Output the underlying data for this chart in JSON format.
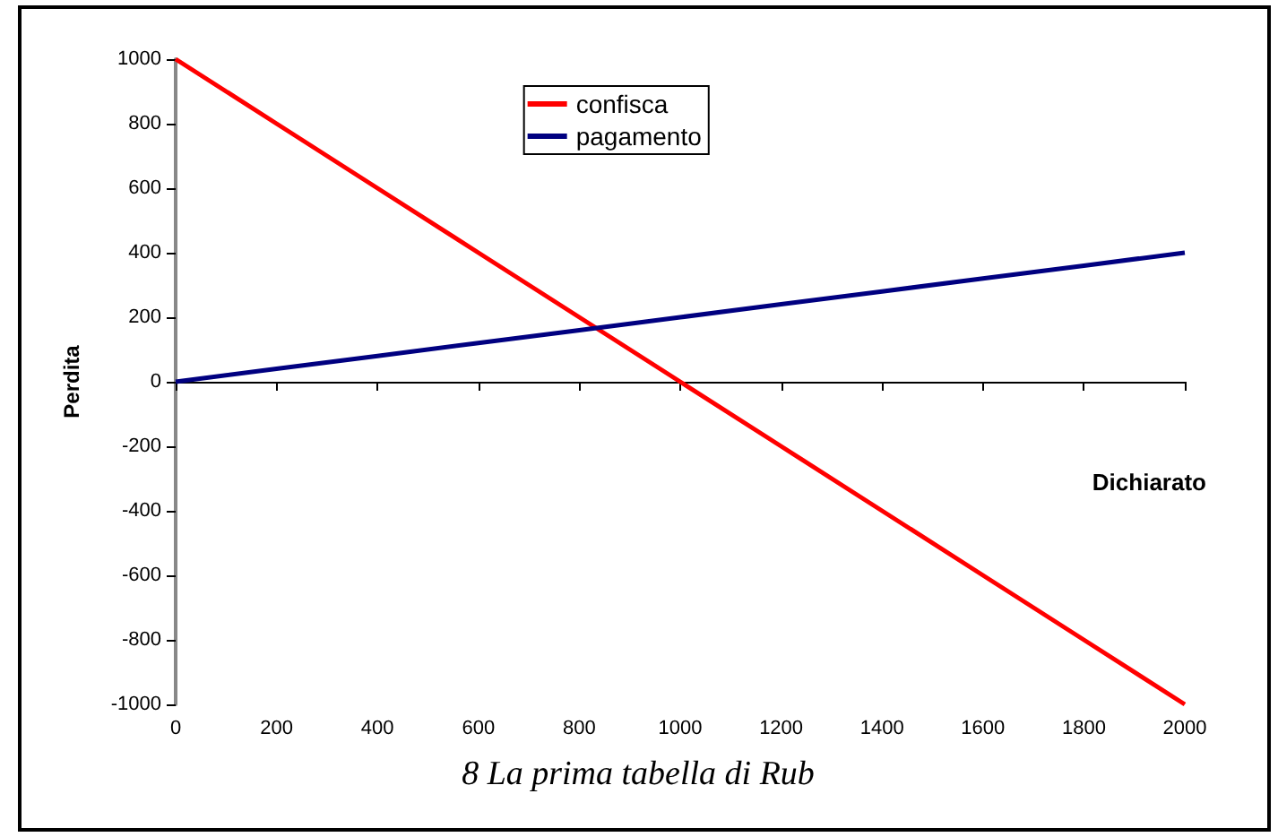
{
  "chart_data": {
    "type": "line",
    "xlabel": "Dichiarato",
    "ylabel": "Perdita",
    "annotations": [
      "8 La prima tabella di Rub"
    ],
    "series": [
      {
        "name": "confisca",
        "color": "#ff0000",
        "values": [
          1000,
          800,
          600,
          400,
          200,
          0,
          -200,
          -400,
          -600,
          -800,
          -1000
        ]
      },
      {
        "name": "pagamento",
        "color": "#000080",
        "values": [
          0,
          40,
          80,
          120,
          160,
          200,
          240,
          280,
          320,
          360,
          400
        ]
      }
    ],
    "x": [
      0,
      200,
      400,
      600,
      800,
      1000,
      1200,
      1400,
      1600,
      1800,
      2000
    ],
    "xlim": [
      0,
      2000
    ],
    "xticks": [
      0,
      200,
      400,
      600,
      800,
      1000,
      1200,
      1400,
      1600,
      1800,
      2000
    ],
    "ylim": [
      -1000,
      1000
    ],
    "yticks": [
      -1000,
      -800,
      -600,
      -400,
      -200,
      0,
      200,
      400,
      600,
      800,
      1000
    ],
    "legend": "top",
    "marker": "none",
    "line_style": "solid"
  }
}
